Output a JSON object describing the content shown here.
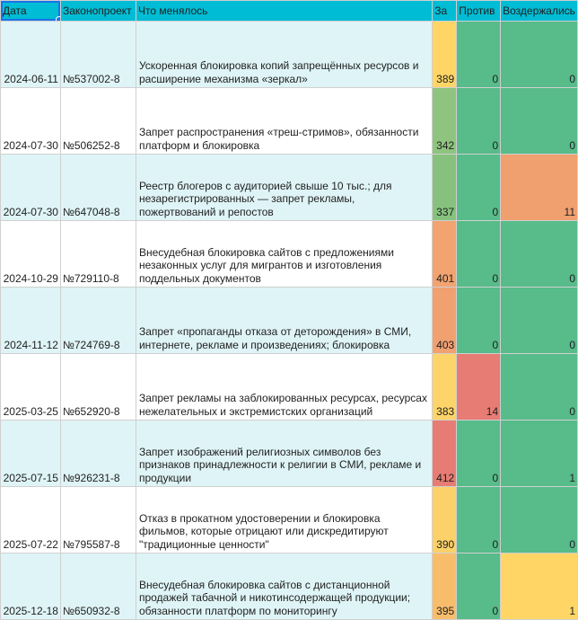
{
  "columns": {
    "date": "Дата",
    "bill": "Законопроект",
    "changes": "Что менялось",
    "for": "За",
    "against": "Против",
    "abstained": "Воздержались"
  },
  "rows": [
    {
      "date": "2024-06-11",
      "bill": "№537002-8",
      "changes": "Ускоренная блокировка копий запрещённых ресурсов и расширение механизма «зеркал»",
      "for": "389",
      "against": "0",
      "abstained": "0",
      "for_color": "#ffd666",
      "against_color": "#57bb8a",
      "abstained_color": "#57bb8a"
    },
    {
      "date": "2024-07-30",
      "bill": "№506252-8",
      "changes": "Запрет распространения «треш-стримов», обязанности платформ и блокировка",
      "for": "342",
      "against": "0",
      "abstained": "0",
      "for_color": "#8fc47f",
      "against_color": "#57bb8a",
      "abstained_color": "#57bb8a"
    },
    {
      "date": "2024-07-30",
      "bill": "№647048-8",
      "changes": "Реестр блогеров с аудиторией свыше 10 тыс.; для незарегистрированных — запрет рекламы, пожертвований и репостов",
      "for": "337",
      "against": "0",
      "abstained": "11",
      "for_color": "#86c27e",
      "against_color": "#57bb8a",
      "abstained_color": "#f0a06f"
    },
    {
      "date": "2024-10-29",
      "bill": "№729110-8",
      "changes": "Внесудебная блокировка сайтов с предложениями незаконных услуг для мигрантов и изготовления поддельных документов",
      "for": "401",
      "against": "0",
      "abstained": "0",
      "for_color": "#f2a36f",
      "against_color": "#57bb8a",
      "abstained_color": "#57bb8a"
    },
    {
      "date": "2024-11-12",
      "bill": "№724769-8",
      "changes": "Запрет «пропаганды отказа от деторождения» в СМИ, интернете, рекламе и произведениях; блокировка",
      "for": "403",
      "against": "0",
      "abstained": "0",
      "for_color": "#f1a070",
      "against_color": "#57bb8a",
      "abstained_color": "#57bb8a"
    },
    {
      "date": "2025-03-25",
      "bill": "№652920-8",
      "changes": "Запрет рекламы на заблокированных ресурсах, ресурсах нежелательных и экстремистских организаций",
      "for": "383",
      "against": "14",
      "abstained": "0",
      "for_color": "#fcd469",
      "against_color": "#e67c73",
      "abstained_color": "#57bb8a"
    },
    {
      "date": "2025-07-15",
      "bill": "№926231-8",
      "changes": "Запрет изображений религиозных символов без признаков принадлежности к религии в СМИ, рекламе и продукции",
      "for": "412",
      "against": "0",
      "abstained": "1",
      "for_color": "#e67c73",
      "against_color": "#57bb8a",
      "abstained_color": "#57bb8a"
    },
    {
      "date": "2025-07-22",
      "bill": "№795587-8",
      "changes": "Отказ в прокатном удостоверении и блокировка фильмов, которые отрицают или дискредитируют \"традиционные ценности\"",
      "for": "390",
      "against": "0",
      "abstained": "0",
      "for_color": "#fcd169",
      "against_color": "#57bb8a",
      "abstained_color": "#57bb8a"
    },
    {
      "date": "2025-12-18",
      "bill": "№650932-8",
      "changes": "Внесудебная блокировка сайтов с дистанционной продажей табачной и никотинсодержащей продукции; обязанности платформ по мониторингу",
      "for": "395",
      "against": "0",
      "abstained": "1",
      "for_color": "#f8bd6b",
      "against_color": "#57bb8a",
      "abstained_color": "#ffd666"
    }
  ]
}
